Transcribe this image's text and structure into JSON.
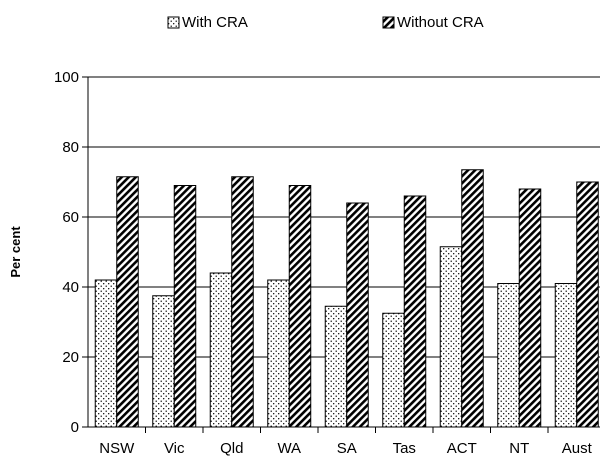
{
  "chart_data": {
    "type": "bar",
    "ylabel": "Per cent",
    "ylim": [
      0,
      100
    ],
    "yticks": [
      "0",
      "20",
      "40",
      "60",
      "80",
      "100"
    ],
    "grid": true,
    "legend_position": "top",
    "categories": [
      "NSW",
      "Vic",
      "Qld",
      "WA",
      "SA",
      "Tas",
      "ACT",
      "NT",
      "Aust"
    ],
    "series": [
      {
        "name": "With CRA",
        "pattern": "dots",
        "values": [
          42,
          37.5,
          44,
          42,
          34.5,
          32.5,
          51.5,
          41,
          41
        ]
      },
      {
        "name": "Without CRA",
        "pattern": "diagonal-hatch",
        "values": [
          71.5,
          69,
          71.5,
          69,
          64,
          66,
          73.5,
          68,
          70
        ]
      }
    ],
    "colors": {
      "bar_fill": "#ffffff",
      "bar_stroke": "#000000",
      "grid": "#000000"
    }
  }
}
